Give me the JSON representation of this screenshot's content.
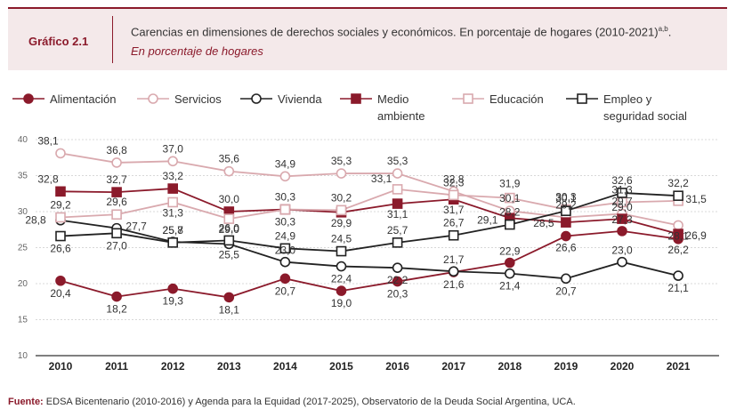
{
  "header": {
    "label": "Gráfico 2.1",
    "title": "Carencias en dimensiones de derechos sociales y económicos. En porcentaje de hogares (2010-2021)",
    "title_sup": "a,b",
    "subtitle": "En porcentaje de hogares"
  },
  "legend": [
    {
      "name": "Alimentación",
      "marker": "circle-filled",
      "color": "#8b1a2b"
    },
    {
      "name": "Servicios",
      "marker": "circle-open",
      "color": "#d9a9ae"
    },
    {
      "name": "Vivienda",
      "marker": "circle-open",
      "color": "#222222"
    },
    {
      "name": "Medio ambiente",
      "line1": "Medio",
      "line2": "ambiente",
      "marker": "square-filled",
      "color": "#8b1a2b"
    },
    {
      "name": "Educación",
      "marker": "square-open",
      "color": "#d9a9ae"
    },
    {
      "name": "Empleo y seguridad social",
      "line1": "Empleo y",
      "line2": "seguridad social",
      "marker": "square-open",
      "color": "#222222"
    }
  ],
  "chart_data": {
    "type": "line",
    "categories": [
      "2010",
      "2011",
      "2012",
      "2013",
      "2014",
      "2015",
      "2016",
      "2017",
      "2018",
      "2019",
      "2020",
      "2021"
    ],
    "ylim": [
      10,
      40
    ],
    "yticks": [
      10,
      15,
      20,
      25,
      30,
      35,
      40
    ],
    "grid": true,
    "series": [
      {
        "name": "Alimentación",
        "color": "#8b1a2b",
        "marker": "circle-filled",
        "values": [
          20.4,
          18.2,
          19.3,
          18.1,
          20.7,
          19.0,
          20.3,
          21.6,
          22.9,
          26.6,
          27.3,
          26.2
        ],
        "labels": [
          "20,4",
          "18,2",
          "19,3",
          "18,1",
          "20,7",
          "19,0",
          "20,3",
          "21,6",
          "22,9",
          "26,6",
          "27,3",
          "26,2"
        ]
      },
      {
        "name": "Servicios",
        "color": "#d9a9ae",
        "marker": "circle-open",
        "values": [
          38.1,
          36.8,
          37.0,
          35.6,
          34.9,
          35.3,
          35.3,
          32.8,
          30.1,
          29.2,
          29.7,
          28.1
        ],
        "labels": [
          "38,1",
          "36,8",
          "37,0",
          "35,6",
          "34,9",
          "35,3",
          "35,3",
          "32,8",
          "30,1",
          "29,2",
          "29,7",
          "28,1"
        ]
      },
      {
        "name": "Vivienda",
        "color": "#222222",
        "marker": "circle-open",
        "values": [
          28.8,
          27.7,
          25.8,
          25.5,
          23.0,
          22.4,
          22.2,
          21.7,
          21.4,
          20.7,
          23.0,
          21.1
        ],
        "labels": [
          "28,8",
          "27,7",
          "25,8",
          "25,5",
          "23,0",
          "22,4",
          "22,2",
          "21,7",
          "21,4",
          "20,7",
          "23,0",
          "21,1"
        ]
      },
      {
        "name": "Medio ambiente",
        "color": "#8b1a2b",
        "marker": "square-filled",
        "values": [
          32.8,
          32.7,
          33.2,
          30.0,
          30.3,
          29.9,
          31.1,
          31.7,
          29.1,
          28.5,
          29.0,
          26.9
        ],
        "labels": [
          "32,8",
          "32,7",
          "33,2",
          "30,0",
          "30,3",
          "29,9",
          "31,1",
          "31,7",
          "29,1",
          "28,5",
          "29,0",
          "26,9"
        ]
      },
      {
        "name": "Educación",
        "color": "#d9a9ae",
        "marker": "square-open",
        "values": [
          29.2,
          29.6,
          31.3,
          29.0,
          30.3,
          30.2,
          33.1,
          32.3,
          31.9,
          30.3,
          31.3,
          31.5
        ],
        "labels": [
          "29,2",
          "29,6",
          "31,3",
          "29,0",
          "30,3",
          "30,2",
          "33,1",
          "32,3",
          "31,9",
          "30,3",
          "31,3",
          "31,5"
        ]
      },
      {
        "name": "Empleo y seguridad social",
        "color": "#222222",
        "marker": "square-open",
        "values": [
          26.6,
          27.0,
          25.7,
          26.0,
          24.9,
          24.5,
          25.7,
          26.7,
          28.2,
          30.1,
          32.6,
          32.2
        ],
        "labels": [
          "26,6",
          "27,0",
          "25,7",
          "26,0",
          "24,9",
          "24,5",
          "25,7",
          "26,7",
          "28,2",
          "30,1",
          "32,6",
          "32,2"
        ]
      }
    ]
  },
  "source": {
    "label": "Fuente:",
    "text": " EDSA Bicentenario (2010-2016) y Agenda para la Equidad (2017-2025), Observatorio de la Deuda Social Argentina, UCA."
  }
}
